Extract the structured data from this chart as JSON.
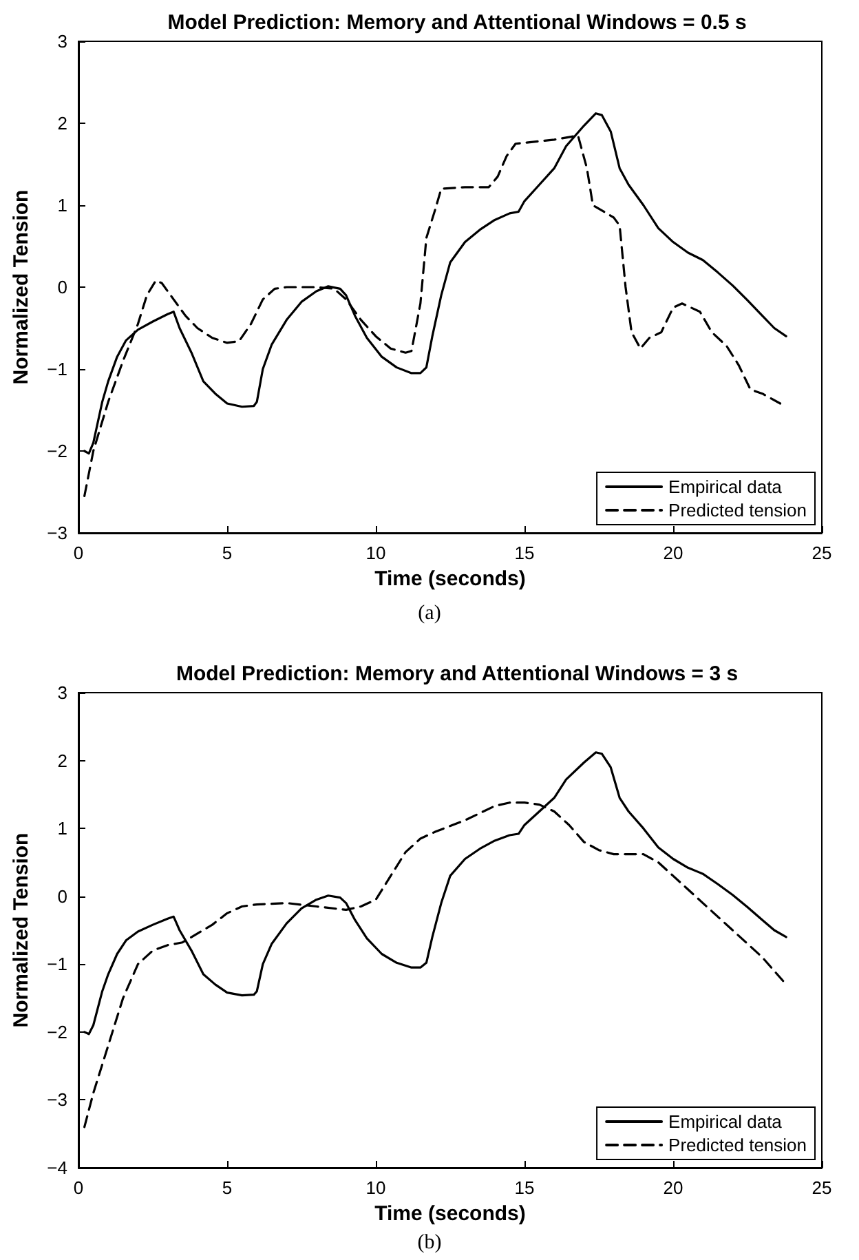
{
  "chart_data": [
    {
      "type": "line",
      "title": "Model Prediction: Memory and Attentional Windows = 0.5 s",
      "xlabel": "Time (seconds)",
      "ylabel": "Normalized Tension",
      "annotations": [
        "(a)"
      ],
      "xlim": [
        0,
        25
      ],
      "xticks": [
        0,
        5,
        10,
        15,
        20,
        25
      ],
      "ylim": [
        -3,
        3
      ],
      "yticks": [
        -3,
        -2,
        -1,
        0,
        1,
        2,
        3
      ],
      "grid": false,
      "legend": "bottom right",
      "marker": "none",
      "series": [
        {
          "name": "Empirical data",
          "color": "#000000",
          "line_style": "solid",
          "x": [
            0.2,
            0.35,
            0.5,
            0.8,
            1.0,
            1.3,
            1.6,
            2.0,
            2.5,
            3.0,
            3.2,
            3.4,
            3.8,
            4.2,
            4.6,
            5.0,
            5.5,
            5.9,
            6.0,
            6.2,
            6.5,
            7.0,
            7.5,
            8.0,
            8.4,
            8.8,
            9.0,
            9.3,
            9.7,
            10.2,
            10.7,
            11.2,
            11.5,
            11.7,
            11.9,
            12.2,
            12.5,
            13.0,
            13.5,
            14.0,
            14.5,
            14.8,
            15.0,
            15.5,
            16.0,
            16.4,
            17.0,
            17.4,
            17.6,
            17.9,
            18.2,
            18.5,
            19.0,
            19.5,
            20.0,
            20.5,
            21.0,
            21.5,
            22.0,
            22.5,
            23.0,
            23.4,
            23.8
          ],
          "values": [
            -2.0,
            -2.03,
            -1.9,
            -1.4,
            -1.15,
            -0.85,
            -0.65,
            -0.52,
            -0.42,
            -0.33,
            -0.3,
            -0.5,
            -0.8,
            -1.15,
            -1.3,
            -1.42,
            -1.46,
            -1.45,
            -1.4,
            -1.0,
            -0.7,
            -0.4,
            -0.18,
            -0.05,
            0.01,
            -0.02,
            -0.1,
            -0.35,
            -0.62,
            -0.85,
            -0.98,
            -1.05,
            -1.05,
            -0.98,
            -0.6,
            -0.1,
            0.3,
            0.55,
            0.7,
            0.82,
            0.9,
            0.92,
            1.05,
            1.25,
            1.45,
            1.72,
            1.97,
            2.12,
            2.1,
            1.9,
            1.45,
            1.25,
            1.0,
            0.72,
            0.55,
            0.42,
            0.33,
            0.18,
            0.02,
            -0.16,
            -0.35,
            -0.5,
            -0.6
          ]
        },
        {
          "name": "Predicted tension",
          "color": "#000000",
          "line_style": "dashed",
          "x": [
            0.2,
            0.5,
            1.0,
            1.5,
            2.0,
            2.3,
            2.6,
            2.8,
            3.2,
            3.6,
            4.0,
            4.5,
            5.0,
            5.4,
            5.8,
            6.2,
            6.6,
            7.0,
            8.0,
            8.6,
            9.0,
            9.5,
            10.0,
            10.5,
            11.0,
            11.2,
            11.5,
            11.7,
            12.0,
            12.2,
            13.0,
            13.8,
            14.1,
            14.4,
            14.7,
            15.5,
            16.0,
            16.8,
            17.1,
            17.3,
            18.0,
            18.2,
            18.4,
            18.6,
            18.9,
            19.2,
            19.6,
            20.0,
            20.3,
            20.9,
            21.3,
            21.8,
            22.2,
            22.6,
            23.0,
            23.6
          ],
          "values": [
            -2.55,
            -2.0,
            -1.4,
            -0.9,
            -0.45,
            -0.1,
            0.08,
            0.05,
            -0.15,
            -0.35,
            -0.5,
            -0.62,
            -0.68,
            -0.66,
            -0.45,
            -0.15,
            -0.02,
            0,
            0,
            -0.02,
            -0.15,
            -0.4,
            -0.6,
            -0.75,
            -0.8,
            -0.78,
            -0.2,
            0.6,
            0.95,
            1.2,
            1.22,
            1.22,
            1.35,
            1.6,
            1.75,
            1.78,
            1.8,
            1.85,
            1.45,
            1.0,
            0.85,
            0.75,
            0.0,
            -0.55,
            -0.75,
            -0.62,
            -0.55,
            -0.25,
            -0.2,
            -0.3,
            -0.55,
            -0.72,
            -0.95,
            -1.25,
            -1.3,
            -1.42
          ]
        }
      ]
    },
    {
      "type": "line",
      "title": "Model Prediction: Memory and Attentional Windows = 3 s",
      "xlabel": "Time (seconds)",
      "ylabel": "Normalized Tension",
      "annotations": [
        "(b)"
      ],
      "xlim": [
        0,
        25
      ],
      "xticks": [
        0,
        5,
        10,
        15,
        20,
        25
      ],
      "ylim": [
        -4,
        3
      ],
      "yticks": [
        -4,
        -3,
        -2,
        -1,
        0,
        1,
        2,
        3
      ],
      "grid": false,
      "legend": "bottom right",
      "marker": "none",
      "series": [
        {
          "name": "Empirical data",
          "color": "#000000",
          "line_style": "solid",
          "x": [
            0.2,
            0.35,
            0.5,
            0.8,
            1.0,
            1.3,
            1.6,
            2.0,
            2.5,
            3.0,
            3.2,
            3.4,
            3.8,
            4.2,
            4.6,
            5.0,
            5.5,
            5.9,
            6.0,
            6.2,
            6.5,
            7.0,
            7.5,
            8.0,
            8.4,
            8.8,
            9.0,
            9.3,
            9.7,
            10.2,
            10.7,
            11.2,
            11.5,
            11.7,
            11.9,
            12.2,
            12.5,
            13.0,
            13.5,
            14.0,
            14.5,
            14.8,
            15.0,
            15.5,
            16.0,
            16.4,
            17.0,
            17.4,
            17.6,
            17.9,
            18.2,
            18.5,
            19.0,
            19.5,
            20.0,
            20.5,
            21.0,
            21.5,
            22.0,
            22.5,
            23.0,
            23.4,
            23.8
          ],
          "values": [
            -2.0,
            -2.03,
            -1.9,
            -1.4,
            -1.15,
            -0.85,
            -0.65,
            -0.52,
            -0.42,
            -0.33,
            -0.3,
            -0.5,
            -0.8,
            -1.15,
            -1.3,
            -1.42,
            -1.46,
            -1.45,
            -1.4,
            -1.0,
            -0.7,
            -0.4,
            -0.18,
            -0.05,
            0.01,
            -0.02,
            -0.1,
            -0.35,
            -0.62,
            -0.85,
            -0.98,
            -1.05,
            -1.05,
            -0.98,
            -0.6,
            -0.1,
            0.3,
            0.55,
            0.7,
            0.82,
            0.9,
            0.92,
            1.05,
            1.25,
            1.45,
            1.72,
            1.97,
            2.12,
            2.1,
            1.9,
            1.45,
            1.25,
            1.0,
            0.72,
            0.55,
            0.42,
            0.33,
            0.18,
            0.02,
            -0.16,
            -0.35,
            -0.5,
            -0.6
          ]
        },
        {
          "name": "Predicted tension",
          "color": "#000000",
          "line_style": "dashed",
          "x": [
            0.2,
            0.5,
            1.0,
            1.5,
            2.0,
            2.5,
            3.0,
            3.5,
            4.0,
            4.5,
            5.0,
            5.5,
            6.0,
            7.0,
            8.0,
            9.0,
            9.5,
            10.0,
            10.5,
            11.0,
            11.5,
            12.0,
            13.0,
            14.0,
            14.5,
            15.0,
            15.5,
            16.0,
            16.5,
            17.0,
            17.5,
            18.0,
            19.0,
            19.5,
            20.0,
            21.0,
            22.0,
            23.0,
            23.7
          ],
          "values": [
            -3.4,
            -2.9,
            -2.2,
            -1.5,
            -1.0,
            -0.8,
            -0.72,
            -0.68,
            -0.55,
            -0.42,
            -0.25,
            -0.15,
            -0.12,
            -0.1,
            -0.15,
            -0.2,
            -0.15,
            -0.05,
            0.3,
            0.65,
            0.85,
            0.95,
            1.12,
            1.33,
            1.38,
            1.38,
            1.35,
            1.25,
            1.05,
            0.8,
            0.68,
            0.62,
            0.62,
            0.5,
            0.3,
            -0.1,
            -0.5,
            -0.9,
            -1.25
          ]
        }
      ]
    }
  ]
}
